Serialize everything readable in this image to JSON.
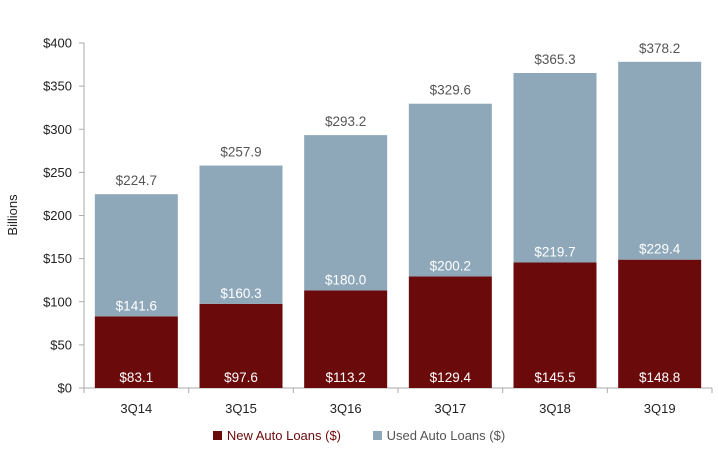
{
  "chart_data": {
    "type": "bar",
    "stacked": true,
    "categories": [
      "3Q14",
      "3Q15",
      "3Q16",
      "3Q17",
      "3Q18",
      "3Q19"
    ],
    "series": [
      {
        "name": "New Auto Loans ($)",
        "color": "#6b0a0b",
        "values": [
          83.1,
          97.6,
          113.2,
          129.4,
          145.5,
          148.8
        ],
        "labels": [
          "$83.1",
          "$97.6",
          "$113.2",
          "$129.4",
          "$145.5",
          "$148.8"
        ]
      },
      {
        "name": "Used Auto Loans ($)",
        "color": "#8ea8ba",
        "values": [
          141.6,
          160.3,
          180.0,
          200.2,
          219.7,
          229.4
        ],
        "labels": [
          "$141.6",
          "$160.3",
          "$180.0",
          "$200.2",
          "$219.7",
          "$229.4"
        ]
      }
    ],
    "totals": [
      224.7,
      257.9,
      293.2,
      329.6,
      365.3,
      378.2
    ],
    "total_labels": [
      "$224.7",
      "$257.9",
      "$293.2",
      "$329.6",
      "$365.3",
      "$378.2"
    ],
    "ylabel": "Billions",
    "xlabel": "",
    "ylim": [
      0,
      400
    ],
    "yticks": [
      0,
      50,
      100,
      150,
      200,
      250,
      300,
      350,
      400
    ],
    "ytick_labels": [
      "$0",
      "$50",
      "$100",
      "$150",
      "$200",
      "$250",
      "$300",
      "$350",
      "$400"
    ],
    "grid": false,
    "legend": "bottom"
  }
}
